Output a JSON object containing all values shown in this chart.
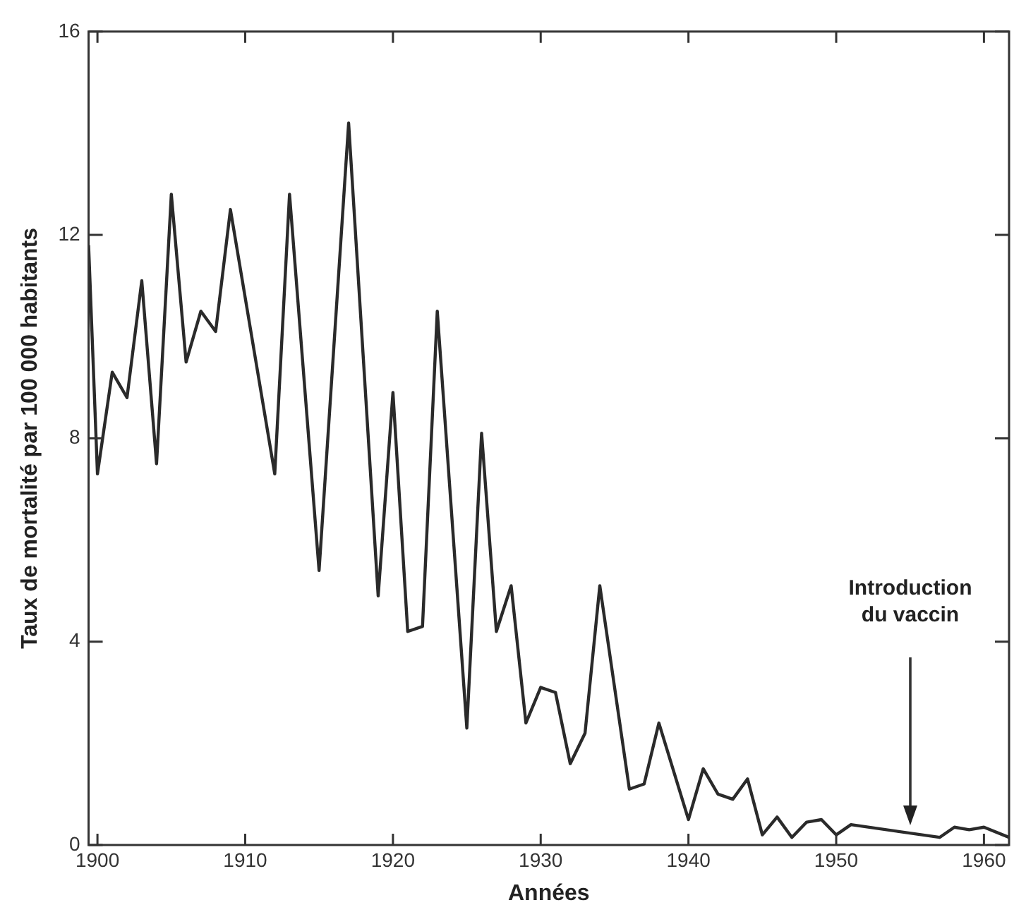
{
  "chart_data": {
    "type": "line",
    "xlabel": "Années",
    "ylabel": "Taux de mortalité par 100 000 habitants",
    "x": [
      1899.4,
      1900,
      1901,
      1902,
      1903,
      1904,
      1905,
      1906,
      1907,
      1908,
      1909,
      1912,
      1913,
      1915,
      1917,
      1919,
      1920,
      1921,
      1922,
      1923,
      1925,
      1926,
      1927,
      1928,
      1929,
      1930,
      1931,
      1932,
      1933,
      1934,
      1936,
      1937,
      1938,
      1940,
      1941,
      1942,
      1943,
      1944,
      1945,
      1946,
      1947,
      1948,
      1949,
      1950,
      1951,
      1957,
      1958,
      1959,
      1960,
      1961.7
    ],
    "series": [
      {
        "color": "#2a2a2a",
        "values": [
          11.8,
          7.3,
          9.3,
          8.8,
          11.1,
          7.5,
          12.8,
          9.5,
          10.5,
          10.1,
          12.5,
          7.3,
          12.8,
          5.4,
          14.2,
          4.9,
          8.9,
          4.2,
          4.3,
          10.5,
          2.3,
          8.1,
          4.2,
          5.1,
          2.4,
          3.1,
          3.0,
          1.6,
          2.2,
          5.1,
          1.1,
          1.2,
          2.4,
          0.5,
          1.5,
          1.0,
          0.9,
          1.3,
          0.2,
          0.55,
          0.15,
          0.45,
          0.5,
          0.2,
          0.4,
          0.15,
          0.35,
          0.3,
          0.35,
          0.15
        ]
      }
    ],
    "xlim": [
      1899.4,
      1961.7
    ],
    "xticks": [
      1900,
      1910,
      1920,
      1930,
      1940,
      1950,
      1960
    ],
    "ylim": [
      0,
      16
    ],
    "yticks": [
      0,
      4,
      8,
      12,
      16
    ],
    "annotations": [
      "Introduction\ndu vaccin"
    ],
    "grid": false,
    "legend": false,
    "marker": "none",
    "line_style": "solid"
  }
}
